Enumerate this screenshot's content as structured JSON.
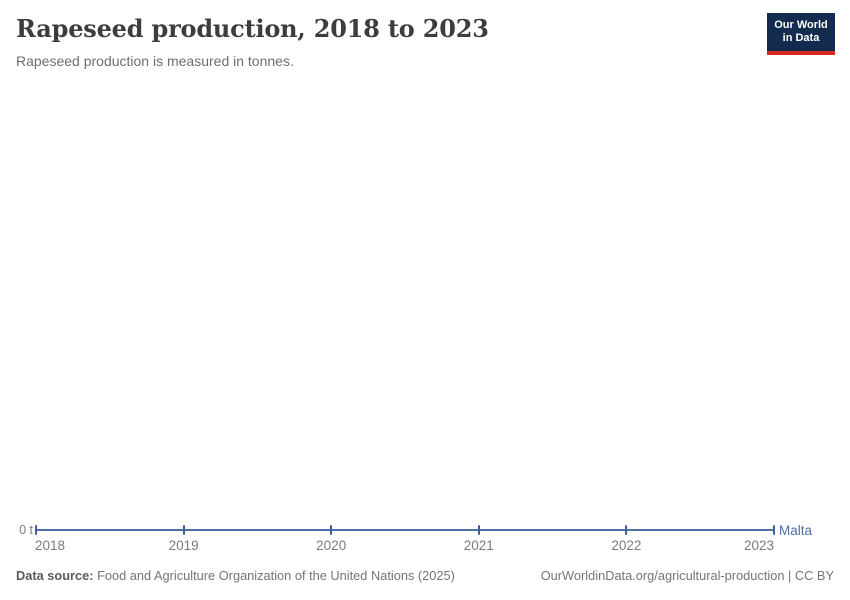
{
  "header": {
    "title": "Rapeseed production, 2018 to 2023",
    "subtitle": "Rapeseed production is measured in tonnes.",
    "logo": {
      "line1": "Our World",
      "line2": "in Data"
    }
  },
  "chart_data": {
    "type": "line",
    "title": "Rapeseed production, 2018 to 2023",
    "subtitle": "Rapeseed production is measured in tonnes.",
    "x": [
      2018,
      2019,
      2020,
      2021,
      2022,
      2023
    ],
    "x_tick_labels": [
      "2018",
      "2019",
      "2020",
      "2021",
      "2022",
      "2023"
    ],
    "series": [
      {
        "name": "Malta",
        "values": [
          0,
          0,
          0,
          0,
          0,
          0
        ],
        "color": "#4e6fa8"
      }
    ],
    "unit": "tonnes",
    "xlabel": "",
    "ylabel": "",
    "y_axis": {
      "min": 0,
      "tick_labels": [
        "0 t"
      ]
    },
    "grid": false,
    "legend_position": "end-of-line-label",
    "point_markers": true
  },
  "axis": {
    "zero_label": "0 t",
    "entity_label": "Malta"
  },
  "footer": {
    "source_label": "Data source:",
    "source_text": " Food and Agriculture Organization of the United Nations (2025)",
    "link_text": "OurWorldinData.org/agricultural-production | CC BY"
  },
  "colors": {
    "line": "#4e6fa8",
    "marker": "#3c5e9e",
    "entity_label": "#4e6fa8",
    "logo_navy": "#122b4e",
    "logo_red": "#d8291f",
    "title_text": "#3d3d3d",
    "muted_text": "#7b7b7b"
  }
}
